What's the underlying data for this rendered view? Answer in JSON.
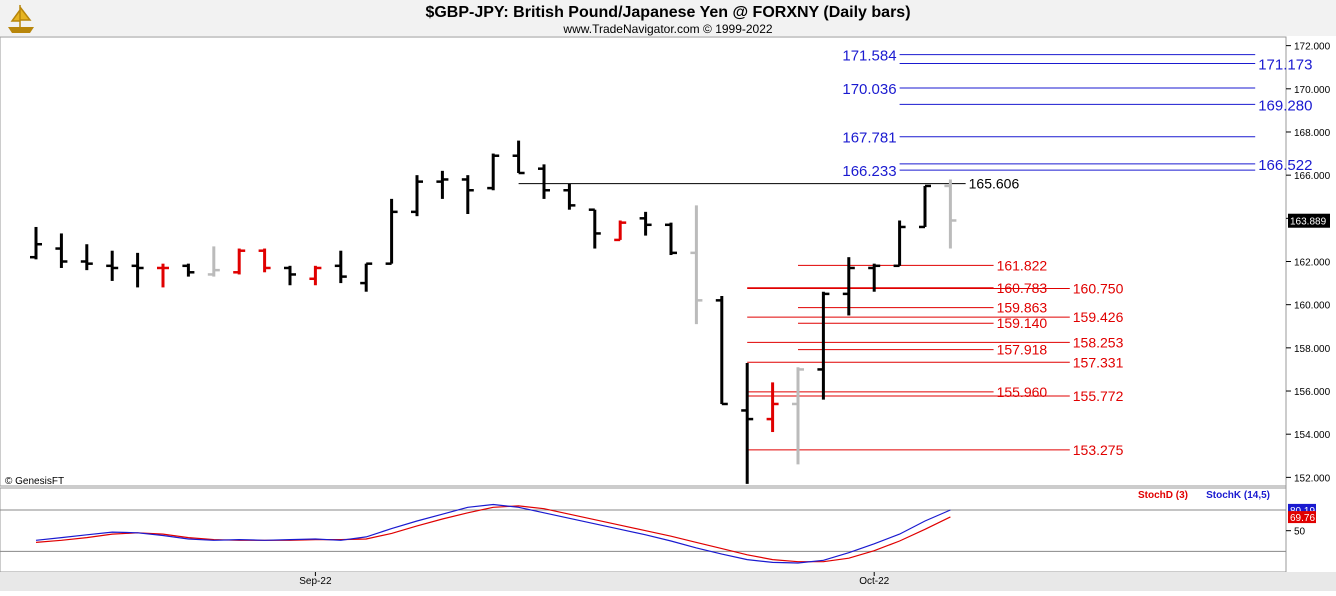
{
  "header": {
    "title": "$GBP-JPY:  British Pound/Japanese Yen @ FORXNY  (Daily bars)",
    "subtitle": "www.TradeNavigator.com © 1999-2022",
    "logo_icon": "sailing-ship-icon"
  },
  "watermark": "© GenesisFT",
  "colors": {
    "up_bar": "#000000",
    "down_bar": "#e00000",
    "neutral_bar": "#bbbbbb",
    "blue_level": "#1a1ad0",
    "red_level": "#e00000",
    "stoch_d": "#e00000",
    "stoch_k": "#1a1ad0"
  },
  "chart_data": {
    "type": "ohlc",
    "ylim": [
      151.6,
      172.4
    ],
    "y_ticks": [
      "172.000",
      "170.000",
      "168.000",
      "166.000",
      "164.000",
      "162.000",
      "160.000",
      "158.000",
      "156.000",
      "154.000",
      "152.000"
    ],
    "x_labels": [
      {
        "label": "Sep-22",
        "bar": 11
      },
      {
        "label": "Oct-22",
        "bar": 33
      }
    ],
    "last_price": "163.889",
    "bars": [
      {
        "o": 162.2,
        "h": 163.6,
        "l": 162.1,
        "c": 162.8,
        "col": "up_bar"
      },
      {
        "o": 162.6,
        "h": 163.3,
        "l": 161.7,
        "c": 162.0,
        "col": "up_bar"
      },
      {
        "o": 162.0,
        "h": 162.8,
        "l": 161.6,
        "c": 161.9,
        "col": "up_bar"
      },
      {
        "o": 161.8,
        "h": 162.5,
        "l": 161.1,
        "c": 161.7,
        "col": "up_bar"
      },
      {
        "o": 161.8,
        "h": 162.4,
        "l": 160.8,
        "c": 161.7,
        "col": "up_bar"
      },
      {
        "o": 161.7,
        "h": 161.9,
        "l": 160.8,
        "c": 161.7,
        "col": "down_bar"
      },
      {
        "o": 161.8,
        "h": 161.9,
        "l": 161.3,
        "c": 161.5,
        "col": "up_bar"
      },
      {
        "o": 161.4,
        "h": 162.7,
        "l": 161.3,
        "c": 161.6,
        "col": "neutral_bar"
      },
      {
        "o": 161.5,
        "h": 162.6,
        "l": 161.4,
        "c": 162.5,
        "col": "down_bar"
      },
      {
        "o": 162.5,
        "h": 162.6,
        "l": 161.5,
        "c": 161.7,
        "col": "down_bar"
      },
      {
        "o": 161.7,
        "h": 161.8,
        "l": 160.9,
        "c": 161.4,
        "col": "up_bar"
      },
      {
        "o": 161.2,
        "h": 161.8,
        "l": 160.9,
        "c": 161.7,
        "col": "down_bar"
      },
      {
        "o": 161.8,
        "h": 162.5,
        "l": 161.0,
        "c": 161.3,
        "col": "up_bar"
      },
      {
        "o": 161.0,
        "h": 161.9,
        "l": 160.6,
        "c": 161.9,
        "col": "up_bar"
      },
      {
        "o": 161.9,
        "h": 164.9,
        "l": 161.9,
        "c": 164.3,
        "col": "up_bar"
      },
      {
        "o": 164.3,
        "h": 166.0,
        "l": 164.1,
        "c": 165.7,
        "col": "up_bar"
      },
      {
        "o": 165.7,
        "h": 166.2,
        "l": 164.9,
        "c": 165.8,
        "col": "up_bar"
      },
      {
        "o": 165.8,
        "h": 166.0,
        "l": 164.2,
        "c": 165.3,
        "col": "up_bar"
      },
      {
        "o": 165.4,
        "h": 167.0,
        "l": 165.3,
        "c": 166.9,
        "col": "up_bar"
      },
      {
        "o": 166.9,
        "h": 167.6,
        "l": 166.1,
        "c": 166.1,
        "col": "up_bar"
      },
      {
        "o": 166.3,
        "h": 166.5,
        "l": 164.9,
        "c": 165.3,
        "col": "up_bar"
      },
      {
        "o": 165.3,
        "h": 165.6,
        "l": 164.4,
        "c": 164.6,
        "col": "up_bar"
      },
      {
        "o": 164.4,
        "h": 164.4,
        "l": 162.6,
        "c": 163.3,
        "col": "up_bar"
      },
      {
        "o": 163.0,
        "h": 163.9,
        "l": 163.0,
        "c": 163.8,
        "col": "down_bar"
      },
      {
        "o": 164.0,
        "h": 164.3,
        "l": 163.2,
        "c": 163.7,
        "col": "up_bar"
      },
      {
        "o": 163.7,
        "h": 163.8,
        "l": 162.3,
        "c": 162.4,
        "col": "up_bar"
      },
      {
        "o": 162.4,
        "h": 164.6,
        "l": 159.1,
        "c": 160.2,
        "col": "neutral_bar"
      },
      {
        "o": 160.2,
        "h": 160.4,
        "l": 155.4,
        "c": 155.4,
        "col": "up_bar"
      },
      {
        "o": 155.1,
        "h": 157.3,
        "l": 151.7,
        "c": 154.7,
        "col": "up_bar"
      },
      {
        "o": 154.7,
        "h": 156.4,
        "l": 154.1,
        "c": 155.4,
        "col": "down_bar"
      },
      {
        "o": 155.4,
        "h": 157.1,
        "l": 152.6,
        "c": 157.0,
        "col": "neutral_bar"
      },
      {
        "o": 157.0,
        "h": 160.6,
        "l": 155.6,
        "c": 160.5,
        "col": "up_bar"
      },
      {
        "o": 160.5,
        "h": 162.2,
        "l": 159.5,
        "c": 161.7,
        "col": "up_bar"
      },
      {
        "o": 161.7,
        "h": 161.9,
        "l": 160.6,
        "c": 161.8,
        "col": "up_bar"
      },
      {
        "o": 161.8,
        "h": 163.9,
        "l": 161.8,
        "c": 163.6,
        "col": "up_bar"
      },
      {
        "o": 163.6,
        "h": 165.5,
        "l": 163.6,
        "c": 165.5,
        "col": "up_bar"
      },
      {
        "o": 165.5,
        "h": 165.8,
        "l": 162.6,
        "c": 163.9,
        "col": "neutral_bar"
      }
    ],
    "levels": [
      {
        "value": 171.584,
        "label": "171.584",
        "color": "blue_level",
        "side": "left",
        "from_bar": 34,
        "to_bar": 48
      },
      {
        "value": 171.173,
        "label": "171.173",
        "color": "blue_level",
        "side": "right",
        "from_bar": 34,
        "to_bar": 48
      },
      {
        "value": 170.036,
        "label": "170.036",
        "color": "blue_level",
        "side": "left",
        "from_bar": 34,
        "to_bar": 48
      },
      {
        "value": 169.28,
        "label": "169.280",
        "color": "blue_level",
        "side": "right",
        "from_bar": 34,
        "to_bar": 48
      },
      {
        "value": 167.781,
        "label": "167.781",
        "color": "blue_level",
        "side": "left",
        "from_bar": 34,
        "to_bar": 48
      },
      {
        "value": 166.522,
        "label": "166.522",
        "color": "blue_level",
        "side": "right",
        "from_bar": 34,
        "to_bar": 48
      },
      {
        "value": 166.233,
        "label": "166.233",
        "color": "blue_level",
        "side": "left",
        "from_bar": 34,
        "to_bar": 48
      },
      {
        "value": 165.606,
        "label": "165.606",
        "color": "up_bar",
        "side": "end",
        "from_bar": 19,
        "to_bar": 36.6
      },
      {
        "value": 161.822,
        "label": "161.822",
        "color": "red_level",
        "side": "end",
        "from_bar": 30,
        "to_bar": 37.7
      },
      {
        "value": 160.783,
        "label": "160.783",
        "color": "red_level",
        "side": "end",
        "from_bar": 28,
        "to_bar": 37.7
      },
      {
        "value": 160.75,
        "label": "160.750",
        "color": "red_level",
        "side": "end",
        "from_bar": 28,
        "to_bar": 40.7
      },
      {
        "value": 159.863,
        "label": "159.863",
        "color": "red_level",
        "side": "end",
        "from_bar": 30,
        "to_bar": 37.7
      },
      {
        "value": 159.426,
        "label": "159.426",
        "color": "red_level",
        "side": "end",
        "from_bar": 28,
        "to_bar": 40.7
      },
      {
        "value": 159.14,
        "label": "159.140",
        "color": "red_level",
        "side": "end",
        "from_bar": 30,
        "to_bar": 37.7
      },
      {
        "value": 158.253,
        "label": "158.253",
        "color": "red_level",
        "side": "end",
        "from_bar": 28,
        "to_bar": 40.7
      },
      {
        "value": 157.918,
        "label": "157.918",
        "color": "red_level",
        "side": "end",
        "from_bar": 30,
        "to_bar": 37.7
      },
      {
        "value": 157.331,
        "label": "157.331",
        "color": "red_level",
        "side": "end",
        "from_bar": 28,
        "to_bar": 40.7
      },
      {
        "value": 155.96,
        "label": "155.960",
        "color": "red_level",
        "side": "end",
        "from_bar": 28,
        "to_bar": 37.7
      },
      {
        "value": 155.772,
        "label": "155.772",
        "color": "red_level",
        "side": "end",
        "from_bar": 28,
        "to_bar": 40.7
      },
      {
        "value": 153.275,
        "label": "153.275",
        "color": "red_level",
        "side": "end",
        "from_bar": 28,
        "to_bar": 40.7
      }
    ],
    "stochastic": {
      "d_label": "StochD (3)",
      "k_label": "StochK (14,5)",
      "ylim": [
        -10,
        112
      ],
      "tick": "50",
      "k_value": "80.19",
      "d_value": "69.76",
      "k": [
        36,
        40,
        44,
        48,
        47,
        43,
        38,
        36,
        37,
        36,
        37,
        38,
        36,
        41,
        53,
        64,
        74,
        84,
        88,
        84,
        76,
        68,
        60,
        52,
        44,
        35,
        25,
        16,
        8,
        4,
        3,
        7,
        18,
        31,
        45,
        64,
        80
      ],
      "d": [
        33,
        36,
        40,
        45,
        47,
        45,
        40,
        37,
        36,
        36,
        36,
        37,
        37,
        38,
        46,
        57,
        67,
        76,
        84,
        86,
        82,
        74,
        66,
        58,
        50,
        42,
        33,
        24,
        15,
        8,
        5,
        5,
        10,
        21,
        35,
        52,
        70
      ]
    }
  }
}
